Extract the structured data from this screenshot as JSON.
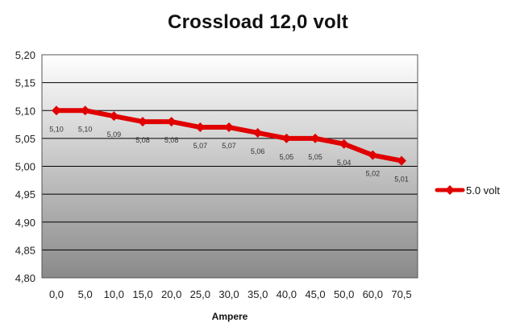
{
  "chart_data": {
    "type": "line",
    "title": "Crossload 12,0 volt",
    "xlabel": "Ampere",
    "ylabel": "",
    "categories": [
      "0,0",
      "5,0",
      "10,0",
      "15,0",
      "20,0",
      "25,0",
      "30,0",
      "35,0",
      "40,0",
      "45,0",
      "50,0",
      "60,0",
      "70,5"
    ],
    "series": [
      {
        "name": "5.0 volt",
        "values": [
          5.1,
          5.1,
          5.09,
          5.08,
          5.08,
          5.07,
          5.07,
          5.06,
          5.05,
          5.05,
          5.04,
          5.02,
          5.01
        ],
        "labels": [
          "5,10",
          "5,10",
          "5,09",
          "5,08",
          "5,08",
          "5,07",
          "5,07",
          "5,06",
          "5,05",
          "5,05",
          "5,04",
          "5,02",
          "5,01"
        ],
        "color": "#e00000"
      }
    ],
    "ylim": [
      4.8,
      5.2
    ],
    "yticks": [
      "4,80",
      "4,85",
      "4,90",
      "4,95",
      "5,00",
      "5,05",
      "5,10",
      "5,15",
      "5,20"
    ],
    "grid": true,
    "legend": "right",
    "plot_background": "gradient-white-to-grey"
  }
}
